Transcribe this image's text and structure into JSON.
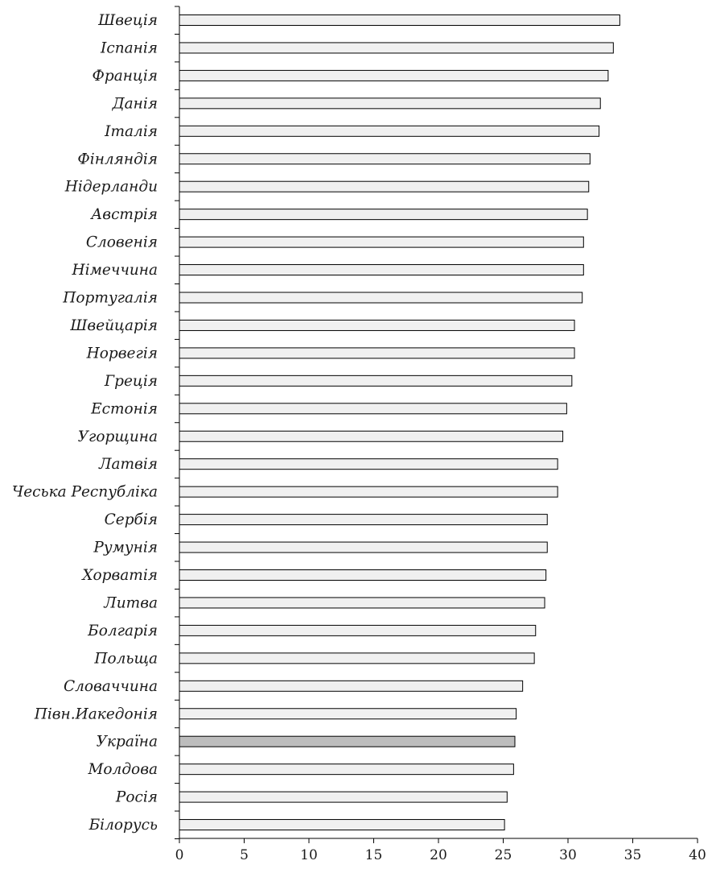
{
  "chart_data": {
    "type": "bar",
    "orientation": "horizontal",
    "title": "",
    "xlabel": "",
    "ylabel": "",
    "xlim": [
      0,
      40
    ],
    "x_ticks": [
      0,
      5,
      10,
      15,
      20,
      25,
      30,
      35,
      40
    ],
    "grid": false,
    "legend": "none",
    "categories": [
      "Швеція",
      "Іспанія",
      "Франція",
      "Данія",
      "Італія",
      "Фінляндія",
      "Нідерланди",
      "Австрія",
      "Словенія",
      "Німеччина",
      "Португалія",
      "Швейцарія",
      "Норвегія",
      "Греція",
      "Естонія",
      "Угорщина",
      "Латвія",
      "Чеська Республіка",
      "Сербія",
      "Румунія",
      "Хорватія",
      "Литва",
      "Болгарія",
      "Польща",
      "Словаччина",
      "Півн.Иакедонія",
      "Україна",
      "Молдова",
      "Росія",
      "Білорусь"
    ],
    "values": [
      34.0,
      33.5,
      33.1,
      32.5,
      32.4,
      31.7,
      31.6,
      31.5,
      31.2,
      31.2,
      31.1,
      30.5,
      30.5,
      30.3,
      29.9,
      29.6,
      29.2,
      29.2,
      28.4,
      28.4,
      28.3,
      28.2,
      27.5,
      27.4,
      26.5,
      26.0,
      25.9,
      25.8,
      25.3,
      25.1
    ],
    "highlight_category": "Україна",
    "colors": {
      "bar_fill": "#f0f0f0",
      "highlight_fill": "#bdbdbd",
      "bar_stroke": "#000000"
    }
  }
}
